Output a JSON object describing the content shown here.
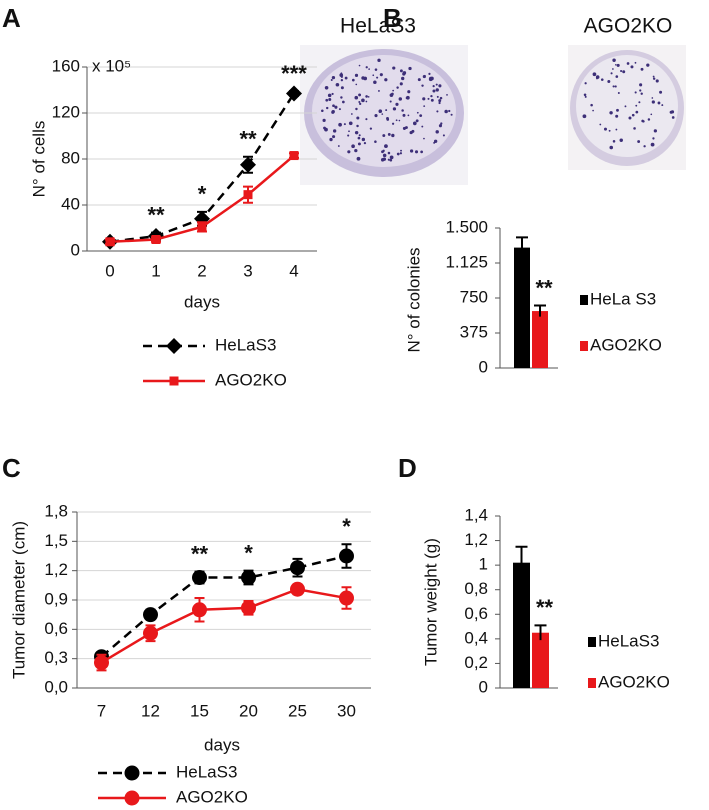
{
  "chart_data": [
    {
      "type": "line",
      "panel": "A",
      "y_label": "N° of cells",
      "y_unit": "x 10⁵",
      "x_label": "days",
      "categories": [
        "0",
        "1",
        "2",
        "3",
        "4"
      ],
      "series": [
        {
          "name": "HeLaS3",
          "color": "#000000",
          "marker": "diamond",
          "line_style": "dashed",
          "values": [
            8,
            13,
            28,
            75,
            137
          ],
          "errors": [
            2,
            3,
            6,
            7,
            2
          ]
        },
        {
          "name": "AGO2KO",
          "color": "#e8181b",
          "marker": "square",
          "line_style": "solid",
          "values": [
            8,
            10,
            21,
            49,
            83
          ],
          "errors": [
            2,
            2,
            4,
            7,
            2
          ]
        }
      ],
      "annotations": [
        null,
        "**",
        "*",
        "**",
        "***"
      ],
      "ylim": [
        0,
        160
      ],
      "yticks": [
        0,
        40,
        80,
        120,
        160
      ],
      "grid": true
    },
    {
      "type": "bar",
      "panel": "B",
      "image_labels": [
        "HeLaS3",
        "AGO2KO"
      ],
      "y_label": "N° of colonies",
      "series": [
        {
          "name": "HeLa S3",
          "color": "#000000",
          "values": [
            1290
          ],
          "errors": [
            110
          ]
        },
        {
          "name": "AGO2KO",
          "color": "#e8181b",
          "values": [
            610
          ],
          "errors": [
            60
          ],
          "annotation": "**"
        }
      ],
      "ylim": [
        0,
        1500
      ],
      "yticks": [
        0,
        375,
        750,
        {
          "value": 1125,
          "label": "1.125"
        },
        {
          "value": 1500,
          "label": "1.500"
        }
      ],
      "grid": false
    },
    {
      "type": "line",
      "panel": "C",
      "y_label": "Tumor diameter (cm)",
      "x_label": "days",
      "categories": [
        "7",
        "12",
        "15",
        "20",
        "25",
        "30"
      ],
      "series": [
        {
          "name": "HeLaS3",
          "color": "#000000",
          "marker": "circle",
          "line_style": "dashed",
          "values": [
            0.32,
            0.75,
            1.13,
            1.13,
            1.23,
            1.35
          ],
          "errors": [
            0.03,
            0.05,
            0.06,
            0.07,
            0.09,
            0.12
          ]
        },
        {
          "name": "AGO2KO",
          "color": "#e8181b",
          "marker": "circle",
          "line_style": "solid",
          "values": [
            0.26,
            0.56,
            0.8,
            0.82,
            1.01,
            0.92
          ],
          "errors": [
            0.08,
            0.08,
            0.12,
            0.07,
            0.05,
            0.11
          ]
        }
      ],
      "annotations": [
        null,
        null,
        "**",
        "*",
        null,
        "*"
      ],
      "ylim": [
        0,
        1.8
      ],
      "yticks": [
        {
          "value": 0,
          "label": "0,0"
        },
        {
          "value": 0.3,
          "label": "0,3"
        },
        {
          "value": 0.6,
          "label": "0,6"
        },
        {
          "value": 0.9,
          "label": "0,9"
        },
        {
          "value": 1.2,
          "label": "1,2"
        },
        {
          "value": 1.5,
          "label": "1,5"
        },
        {
          "value": 1.8,
          "label": "1,8"
        }
      ],
      "grid": true
    },
    {
      "type": "bar",
      "panel": "D",
      "y_label": "Tumor weight (g)",
      "series": [
        {
          "name": "HeLaS3",
          "color": "#000000",
          "values": [
            1.02
          ],
          "errors": [
            0.13
          ]
        },
        {
          "name": "AGO2KO",
          "color": "#e8181b",
          "values": [
            0.45
          ],
          "errors": [
            0.06
          ],
          "annotation": "**"
        }
      ],
      "ylim": [
        0,
        1.4
      ],
      "yticks": [
        0,
        {
          "value": 0.2,
          "label": "0,2"
        },
        {
          "value": 0.4,
          "label": "0,4"
        },
        {
          "value": 0.6,
          "label": "0,6"
        },
        {
          "value": 0.8,
          "label": "0,8"
        },
        1,
        {
          "value": 1.2,
          "label": "1,2"
        },
        {
          "value": 1.4,
          "label": "1,4"
        }
      ],
      "grid": false
    }
  ]
}
